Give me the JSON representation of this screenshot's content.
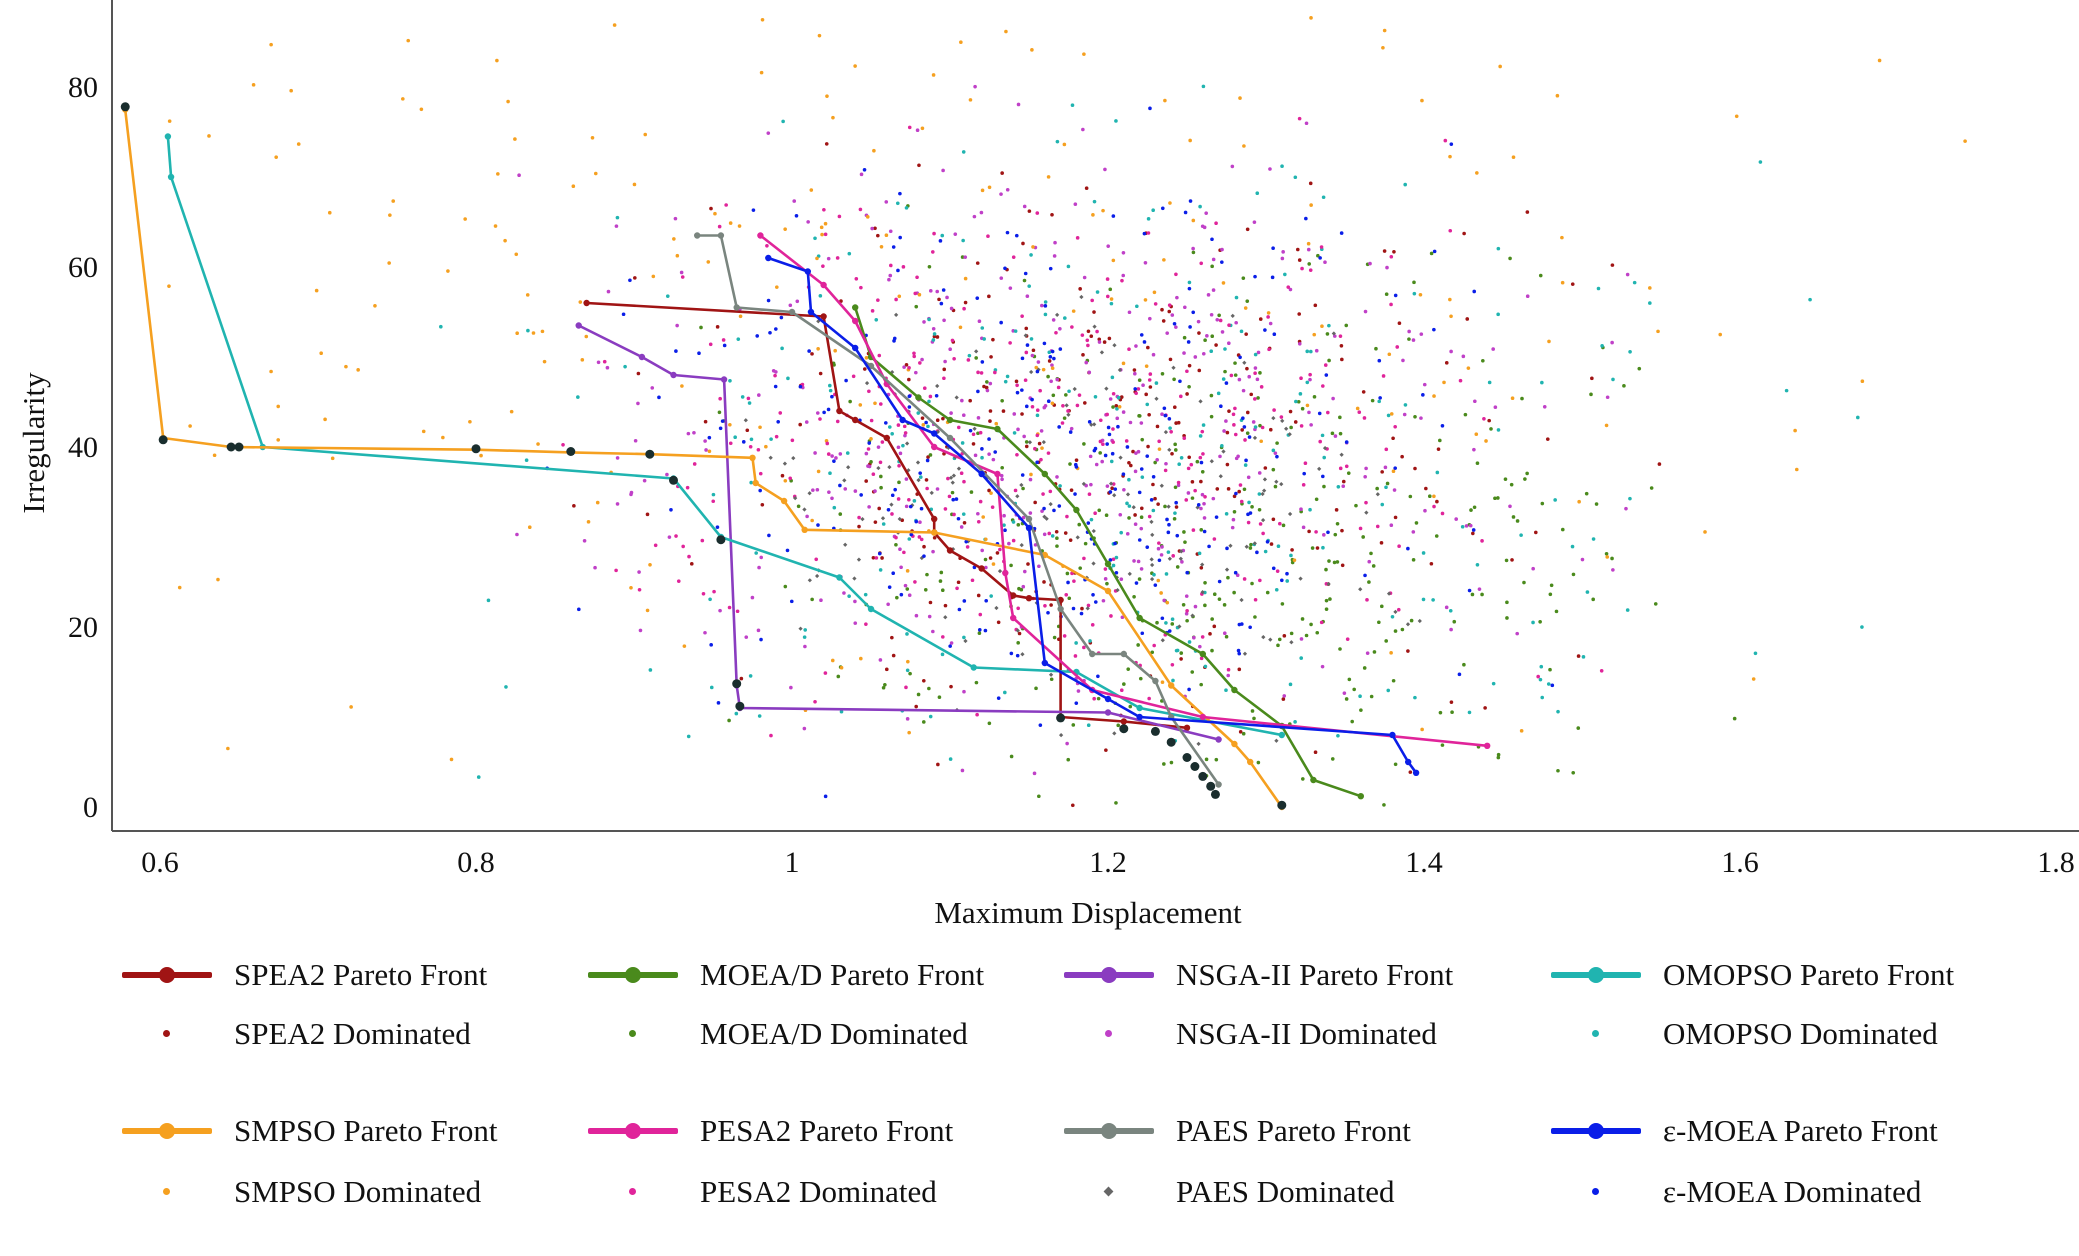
{
  "chart_data": {
    "type": "scatter",
    "xlabel": "Maximum Displacement",
    "ylabel": "Irregularity",
    "xlim": [
      0.58,
      1.82
    ],
    "ylim": [
      -2,
      90
    ],
    "x_ticks": [
      0.6,
      0.8,
      1,
      1.2,
      1.4,
      1.6,
      1.8
    ],
    "y_ticks": [
      0,
      20,
      40,
      60,
      80
    ],
    "x_tick_labels": [
      "0.6",
      "0.8",
      "1",
      "1.2",
      "1.4",
      "1.6",
      "1.8"
    ],
    "y_tick_labels": [
      "0",
      "20",
      "40",
      "60",
      "80"
    ],
    "grid": false,
    "legend_position": "bottom",
    "series": [
      {
        "name": "SPEA2 Pareto Front",
        "kind": "front",
        "color": "#a01414",
        "x": [
          0.87,
          1.02,
          1.03,
          1.04,
          1.06,
          1.09,
          1.09,
          1.1,
          1.12,
          1.14,
          1.15,
          1.17,
          1.17,
          1.21,
          1.25
        ],
        "y": [
          56,
          54.5,
          44,
          43,
          41,
          32,
          30.5,
          28.5,
          26.5,
          23.5,
          23.2,
          23,
          10,
          9.5,
          8.8
        ]
      },
      {
        "name": "SPEA2 Dominated",
        "kind": "dominated",
        "color": "#a01414",
        "count": 260,
        "center": [
          1.2,
          40
        ],
        "spread": [
          0.13,
          14
        ]
      },
      {
        "name": "MOEA/D Pareto Front",
        "kind": "front",
        "color": "#4a8a1c",
        "x": [
          1.04,
          1.05,
          1.08,
          1.1,
          1.13,
          1.16,
          1.18,
          1.2,
          1.22,
          1.26,
          1.28,
          1.31,
          1.33,
          1.36
        ],
        "y": [
          55.5,
          50,
          45.5,
          43,
          42,
          37,
          33,
          27,
          21,
          17,
          13,
          9,
          3,
          1.2
        ]
      },
      {
        "name": "MOEA/D Dominated",
        "kind": "dominated",
        "color": "#4a8a1c",
        "count": 340,
        "center": [
          1.27,
          28
        ],
        "spread": [
          0.13,
          15
        ]
      },
      {
        "name": "NSGA-II Pareto Front",
        "kind": "front",
        "color": "#8a3cc0",
        "x": [
          0.865,
          0.905,
          0.925,
          0.957,
          0.965,
          0.967,
          1.2,
          1.27
        ],
        "y": [
          53.5,
          50,
          48,
          47.5,
          13.5,
          11,
          10.5,
          7.5
        ]
      },
      {
        "name": "NSGA-II Dominated",
        "kind": "dominated",
        "color": "#c040c8",
        "count": 380,
        "center": [
          1.18,
          42
        ],
        "spread": [
          0.14,
          15
        ]
      },
      {
        "name": "OMOPSO Pareto Front",
        "kind": "front",
        "color": "#20b4b0",
        "x": [
          0.605,
          0.607,
          0.665,
          0.925,
          0.955,
          1.03,
          1.05,
          1.115,
          1.18,
          1.22,
          1.31
        ],
        "y": [
          74.5,
          70,
          40,
          36.5,
          30,
          25.5,
          22,
          15.5,
          15,
          11,
          8
        ]
      },
      {
        "name": "OMOPSO Dominated",
        "kind": "dominated",
        "color": "#20b4b0",
        "count": 260,
        "center": [
          1.22,
          40
        ],
        "spread": [
          0.18,
          17
        ]
      },
      {
        "name": "SMPSO Pareto Front",
        "kind": "front",
        "color": "#f5a020",
        "x": [
          0.578,
          0.602,
          0.645,
          0.8,
          0.86,
          0.91,
          0.975,
          0.977,
          0.995,
          1.008,
          1.09,
          1.16,
          1.2,
          1.24,
          1.28,
          1.29,
          1.31
        ],
        "y": [
          77.5,
          41,
          40,
          39.7,
          39.4,
          39.2,
          38.8,
          36,
          34,
          30.8,
          30.5,
          28,
          24,
          13.5,
          7,
          5,
          0
        ]
      },
      {
        "name": "SMPSO Dominated",
        "kind": "dominated",
        "color": "#f5a020",
        "count": 260,
        "center": [
          1.05,
          55
        ],
        "spread": [
          0.28,
          22
        ]
      },
      {
        "name": "PESA2 Pareto Front",
        "kind": "front",
        "color": "#e0249a",
        "x": [
          0.98,
          1.02,
          1.04,
          1.06,
          1.09,
          1.13,
          1.135,
          1.14,
          1.19,
          1.26,
          1.44
        ],
        "y": [
          63.5,
          58,
          54,
          47,
          40,
          37,
          26,
          21,
          13,
          10,
          6.8
        ]
      },
      {
        "name": "PESA2 Dominated",
        "kind": "dominated",
        "color": "#e0249a",
        "count": 320,
        "center": [
          1.17,
          40
        ],
        "spread": [
          0.13,
          14
        ]
      },
      {
        "name": "PAES Pareto Front",
        "kind": "front",
        "color": "#7a857f",
        "x": [
          0.94,
          0.955,
          0.965,
          1.0,
          1.05,
          1.1,
          1.15,
          1.17,
          1.19,
          1.21,
          1.23,
          1.24,
          1.27
        ],
        "y": [
          63.5,
          63.5,
          55.5,
          55,
          49,
          41,
          32,
          22,
          17,
          17,
          14,
          10,
          2.5
        ]
      },
      {
        "name": "PAES Dominated",
        "kind": "dominated",
        "color": "#666666",
        "count": 160,
        "center": [
          1.18,
          35
        ],
        "spread": [
          0.1,
          12
        ]
      },
      {
        "name": "ε-MOEA Pareto Front",
        "kind": "front",
        "color": "#0a1ee8",
        "x": [
          0.985,
          1.01,
          1.012,
          1.04,
          1.07,
          1.09,
          1.12,
          1.15,
          1.16,
          1.2,
          1.22,
          1.38,
          1.39,
          1.395
        ],
        "y": [
          61,
          59.5,
          55,
          51,
          43,
          41.5,
          37,
          31,
          16,
          12,
          10,
          8,
          5,
          3.8
        ]
      },
      {
        "name": "ε-MOEA Dominated",
        "kind": "dominated",
        "color": "#0a1ee8",
        "count": 260,
        "center": [
          1.16,
          40
        ],
        "spread": [
          0.12,
          14
        ]
      },
      {
        "name": "Front Markers",
        "kind": "markers",
        "color": "#1a2e2e",
        "x": [
          0.578,
          0.602,
          0.645,
          0.65,
          0.8,
          0.86,
          0.91,
          0.925,
          0.955,
          0.965,
          0.967,
          1.17,
          1.21,
          1.23,
          1.24,
          1.25,
          1.255,
          1.26,
          1.265,
          1.268,
          1.31
        ],
        "y": [
          77.8,
          40.8,
          40,
          40,
          39.8,
          39.5,
          39.2,
          36.3,
          29.7,
          13.7,
          11.2,
          9.9,
          8.7,
          8.4,
          7.2,
          5.5,
          4.5,
          3.4,
          2.3,
          1.4,
          0.2
        ]
      }
    ]
  },
  "legend": {
    "items": [
      {
        "label": "SPEA2 Pareto Front",
        "color": "#a01414",
        "style": "line"
      },
      {
        "label": "MOEA/D Pareto Front",
        "color": "#4a8a1c",
        "style": "line"
      },
      {
        "label": "NSGA-II Pareto Front",
        "color": "#8a3cc0",
        "style": "line"
      },
      {
        "label": "OMOPSO Pareto Front",
        "color": "#20b4b0",
        "style": "line"
      },
      {
        "label": "SPEA2 Dominated",
        "color": "#a01414",
        "style": "dot"
      },
      {
        "label": "MOEA/D Dominated",
        "color": "#4a8a1c",
        "style": "dot"
      },
      {
        "label": "NSGA-II Dominated",
        "color": "#c040c8",
        "style": "dot"
      },
      {
        "label": "OMOPSO Dominated",
        "color": "#20b4b0",
        "style": "dot"
      },
      {
        "label": "SMPSO Pareto Front",
        "color": "#f5a020",
        "style": "line"
      },
      {
        "label": "PESA2 Pareto Front",
        "color": "#e0249a",
        "style": "line"
      },
      {
        "label": "PAES Pareto Front",
        "color": "#7a857f",
        "style": "line"
      },
      {
        "label": "ε-MOEA Pareto Front",
        "color": "#0a1ee8",
        "style": "line"
      },
      {
        "label": "SMPSO Dominated",
        "color": "#f5a020",
        "style": "dot"
      },
      {
        "label": "PESA2 Dominated",
        "color": "#e0249a",
        "style": "dot"
      },
      {
        "label": "PAES Dominated",
        "color": "#666666",
        "style": "diamond"
      },
      {
        "label": "ε-MOEA Dominated",
        "color": "#0a1ee8",
        "style": "dot"
      }
    ]
  }
}
